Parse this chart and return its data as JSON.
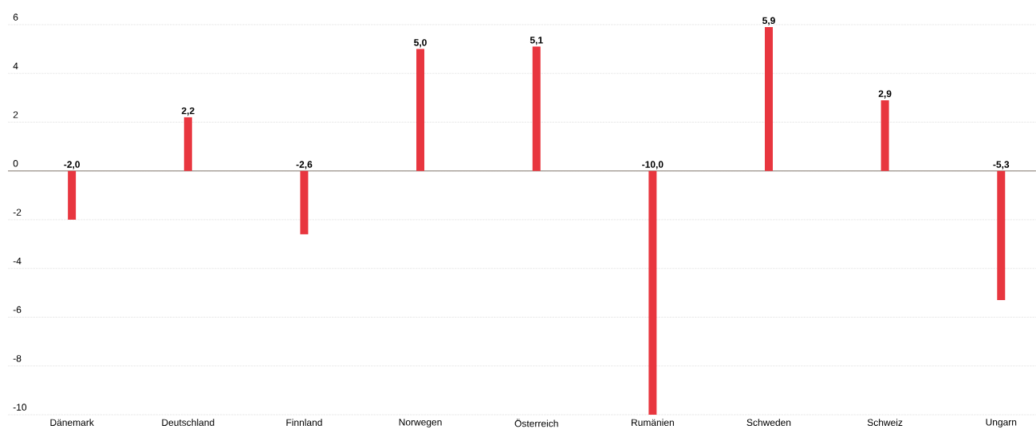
{
  "chart_data": {
    "type": "bar",
    "categories": [
      "Dänemark",
      "Deutschland",
      "Finnland",
      "Norwegen",
      "Österreich",
      "Rumänien",
      "Schweden",
      "Schweiz",
      "Ungarn"
    ],
    "values": [
      -2.0,
      2.2,
      -2.6,
      5.0,
      5.1,
      -10.0,
      5.9,
      2.9,
      -5.3
    ],
    "value_labels": [
      "-2,0",
      "2,2",
      "-2,6",
      "5,0",
      "5,1",
      "-10,0",
      "5,9",
      "2,9",
      "-5,3"
    ],
    "color": "#e8363f",
    "ylim": [
      -10,
      6
    ],
    "yticks": [
      -10,
      -8,
      -6,
      -4,
      -2,
      0,
      2,
      4,
      6
    ],
    "grid": "y",
    "ref_lines": [
      {
        "axis": "y",
        "value": 0,
        "color": "#a39b94"
      }
    ]
  }
}
